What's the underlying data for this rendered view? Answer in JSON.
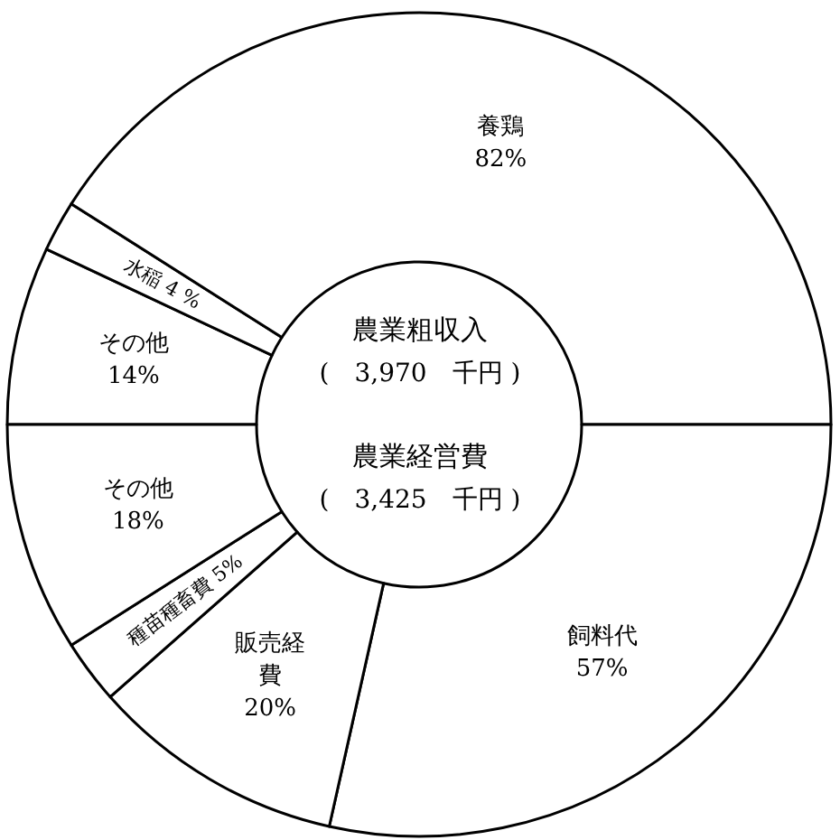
{
  "chart_data": [
    {
      "type": "donut",
      "title": "農業粗収入",
      "subtitle": "(　3,970　千円 )",
      "categories": [
        "その他",
        "水稲",
        "養鶏"
      ],
      "values": [
        14,
        4,
        82
      ],
      "value_labels": [
        "14%",
        "4 %",
        "82%"
      ],
      "colors": [
        "#ffffff",
        "#ffffff",
        "#ffffff"
      ]
    },
    {
      "type": "donut",
      "title": "農業経営費",
      "subtitle": "(　3,425　千円 )",
      "categories": [
        "飼料代",
        "販売経費",
        "種苗種畜費",
        "その他"
      ],
      "values": [
        57,
        20,
        5,
        18
      ],
      "value_labels": [
        "57%",
        "20%",
        "5%",
        "18%"
      ],
      "colors": [
        "#ffffff",
        "#ffffff",
        "#ffffff",
        "#ffffff"
      ]
    }
  ]
}
